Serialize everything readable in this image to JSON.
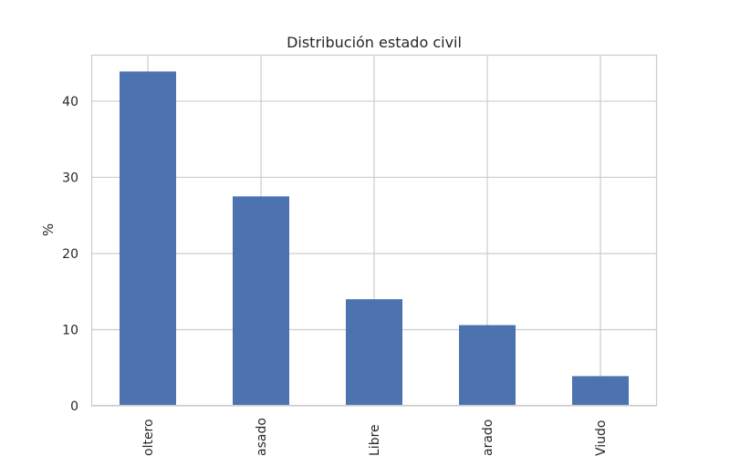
{
  "chart_data": {
    "type": "bar",
    "title": "Distribución estado civil",
    "xlabel": "",
    "ylabel": "%",
    "categories": [
      "Soltero",
      "Casado",
      "Libre",
      "Separado",
      "Viudo"
    ],
    "category_labels_visible": [
      "oltero",
      "asado",
      "Libre",
      "arado",
      "Viudo"
    ],
    "values": [
      43.9,
      27.5,
      14.0,
      10.6,
      3.9
    ],
    "ylim": [
      0,
      46.1
    ],
    "yticks": [
      0,
      10,
      20,
      30,
      40
    ],
    "grid": true,
    "bar_color": "#4c72b0"
  }
}
